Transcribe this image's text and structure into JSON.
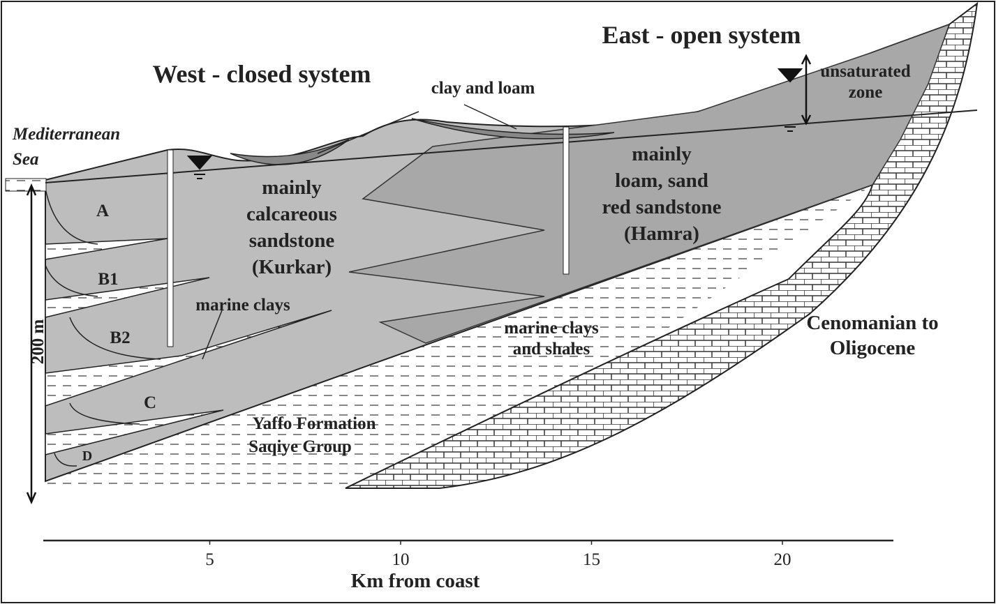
{
  "regions": {
    "west": "West - closed system",
    "east": "East - open system"
  },
  "labels": {
    "sea": [
      "Mediterranean",
      "Sea"
    ],
    "clay_loam": "clay and loam",
    "unsaturated": [
      "unsaturated",
      "zone"
    ],
    "kurkar": [
      "mainly",
      "calcareous",
      "sandstone",
      "(Kurkar)"
    ],
    "hamra": [
      "mainly",
      "loam, sand",
      "red sandstone",
      "(Hamra)"
    ],
    "marine_clays": "marine clays",
    "marine_shales": [
      "marine clays",
      "and shales"
    ],
    "cenomanian": [
      "Cenomanian to",
      "Oligocene"
    ],
    "yaffo": [
      "Yaffo Formation",
      "Saqiye Group"
    ],
    "depth": "200 m"
  },
  "aquifers": [
    "A",
    "B1",
    "B2",
    "C",
    "D"
  ],
  "axis": {
    "ticks": [
      5,
      10,
      15,
      20
    ],
    "label": "Km from coast"
  }
}
